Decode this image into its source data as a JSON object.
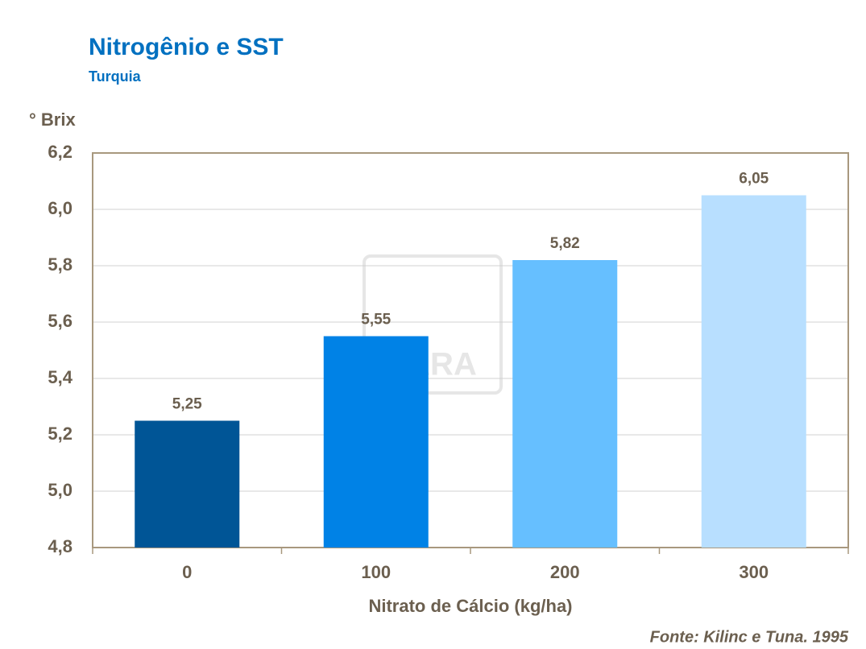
{
  "chart_data": {
    "type": "bar",
    "title": "Nitrogênio e SST",
    "subtitle": "Turquia",
    "y_label": "° Brix",
    "x_label": "Nitrato de Cálcio (kg/ha)",
    "source": "Fonte: Kilinc e Tuna. 1995",
    "watermark": "YARA",
    "categories": [
      "0",
      "100",
      "200",
      "300"
    ],
    "values": [
      5.25,
      5.55,
      5.82,
      6.05
    ],
    "value_labels": [
      "5,25",
      "5,55",
      "5,82",
      "6,05"
    ],
    "colors": [
      "#005596",
      "#0082e6",
      "#66bfff",
      "#b8dfff"
    ],
    "ylim": [
      4.8,
      6.2
    ],
    "yticks": [
      {
        "value": 4.8,
        "label": "4,8"
      },
      {
        "value": 5.0,
        "label": "5,0"
      },
      {
        "value": 5.2,
        "label": "5,2"
      },
      {
        "value": 5.4,
        "label": "5,4"
      },
      {
        "value": 5.6,
        "label": "5,6"
      },
      {
        "value": 5.8,
        "label": "5,8"
      },
      {
        "value": 6.0,
        "label": "6,0"
      },
      {
        "value": 6.2,
        "label": "6,2"
      }
    ],
    "grid": true
  }
}
